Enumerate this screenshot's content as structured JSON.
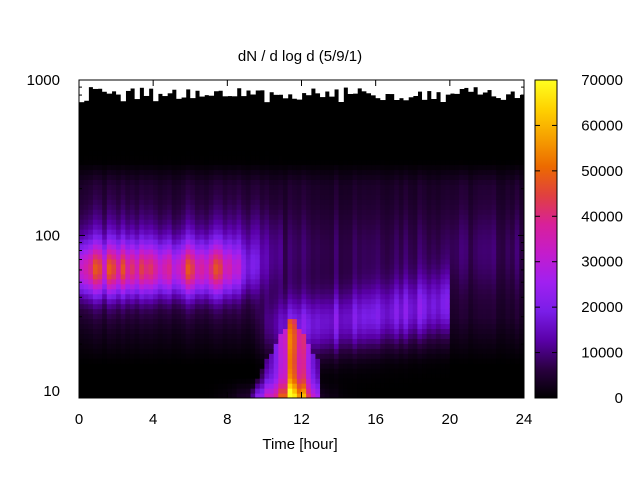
{
  "chart_data": {
    "type": "heatmap",
    "title": "dN / d log d (5/9/1)",
    "xlabel": "Time [hour]",
    "ylabel": "",
    "x_ticks": [
      0,
      4,
      8,
      12,
      16,
      20,
      24
    ],
    "y_ticks": [
      10,
      100,
      1000
    ],
    "xlim": [
      0,
      24
    ],
    "ylim": [
      9,
      1000
    ],
    "y_scale": "log",
    "colorbar": {
      "range": [
        0,
        70000
      ],
      "ticks": [
        0,
        10000,
        20000,
        30000,
        40000,
        50000,
        60000,
        70000
      ],
      "palette": [
        "#000000",
        "#2a0040",
        "#5a00a8",
        "#7a1ee8",
        "#a020f0",
        "#c41ccc",
        "#d8209a",
        "#e04040",
        "#ec6a00",
        "#f6a000",
        "#ffd200",
        "#ffff20"
      ]
    },
    "features": [
      {
        "description_value": "background band",
        "diameter_range": [
          30,
          300
        ],
        "time_range": [
          0,
          24
        ],
        "level": 8000
      },
      {
        "description_value": "morning mode",
        "diameter_center": 60,
        "time_range": [
          0,
          7
        ],
        "level": 28000
      },
      {
        "description_value": "growth mode",
        "diameter_center": 25,
        "time_range": [
          11,
          20
        ],
        "level": 16000
      },
      {
        "description_value": "nucleation event",
        "diameter_range": [
          10,
          30
        ],
        "time_range": [
          8.5,
          13
        ],
        "peak_time": 11.5,
        "level": 55000
      }
    ]
  }
}
